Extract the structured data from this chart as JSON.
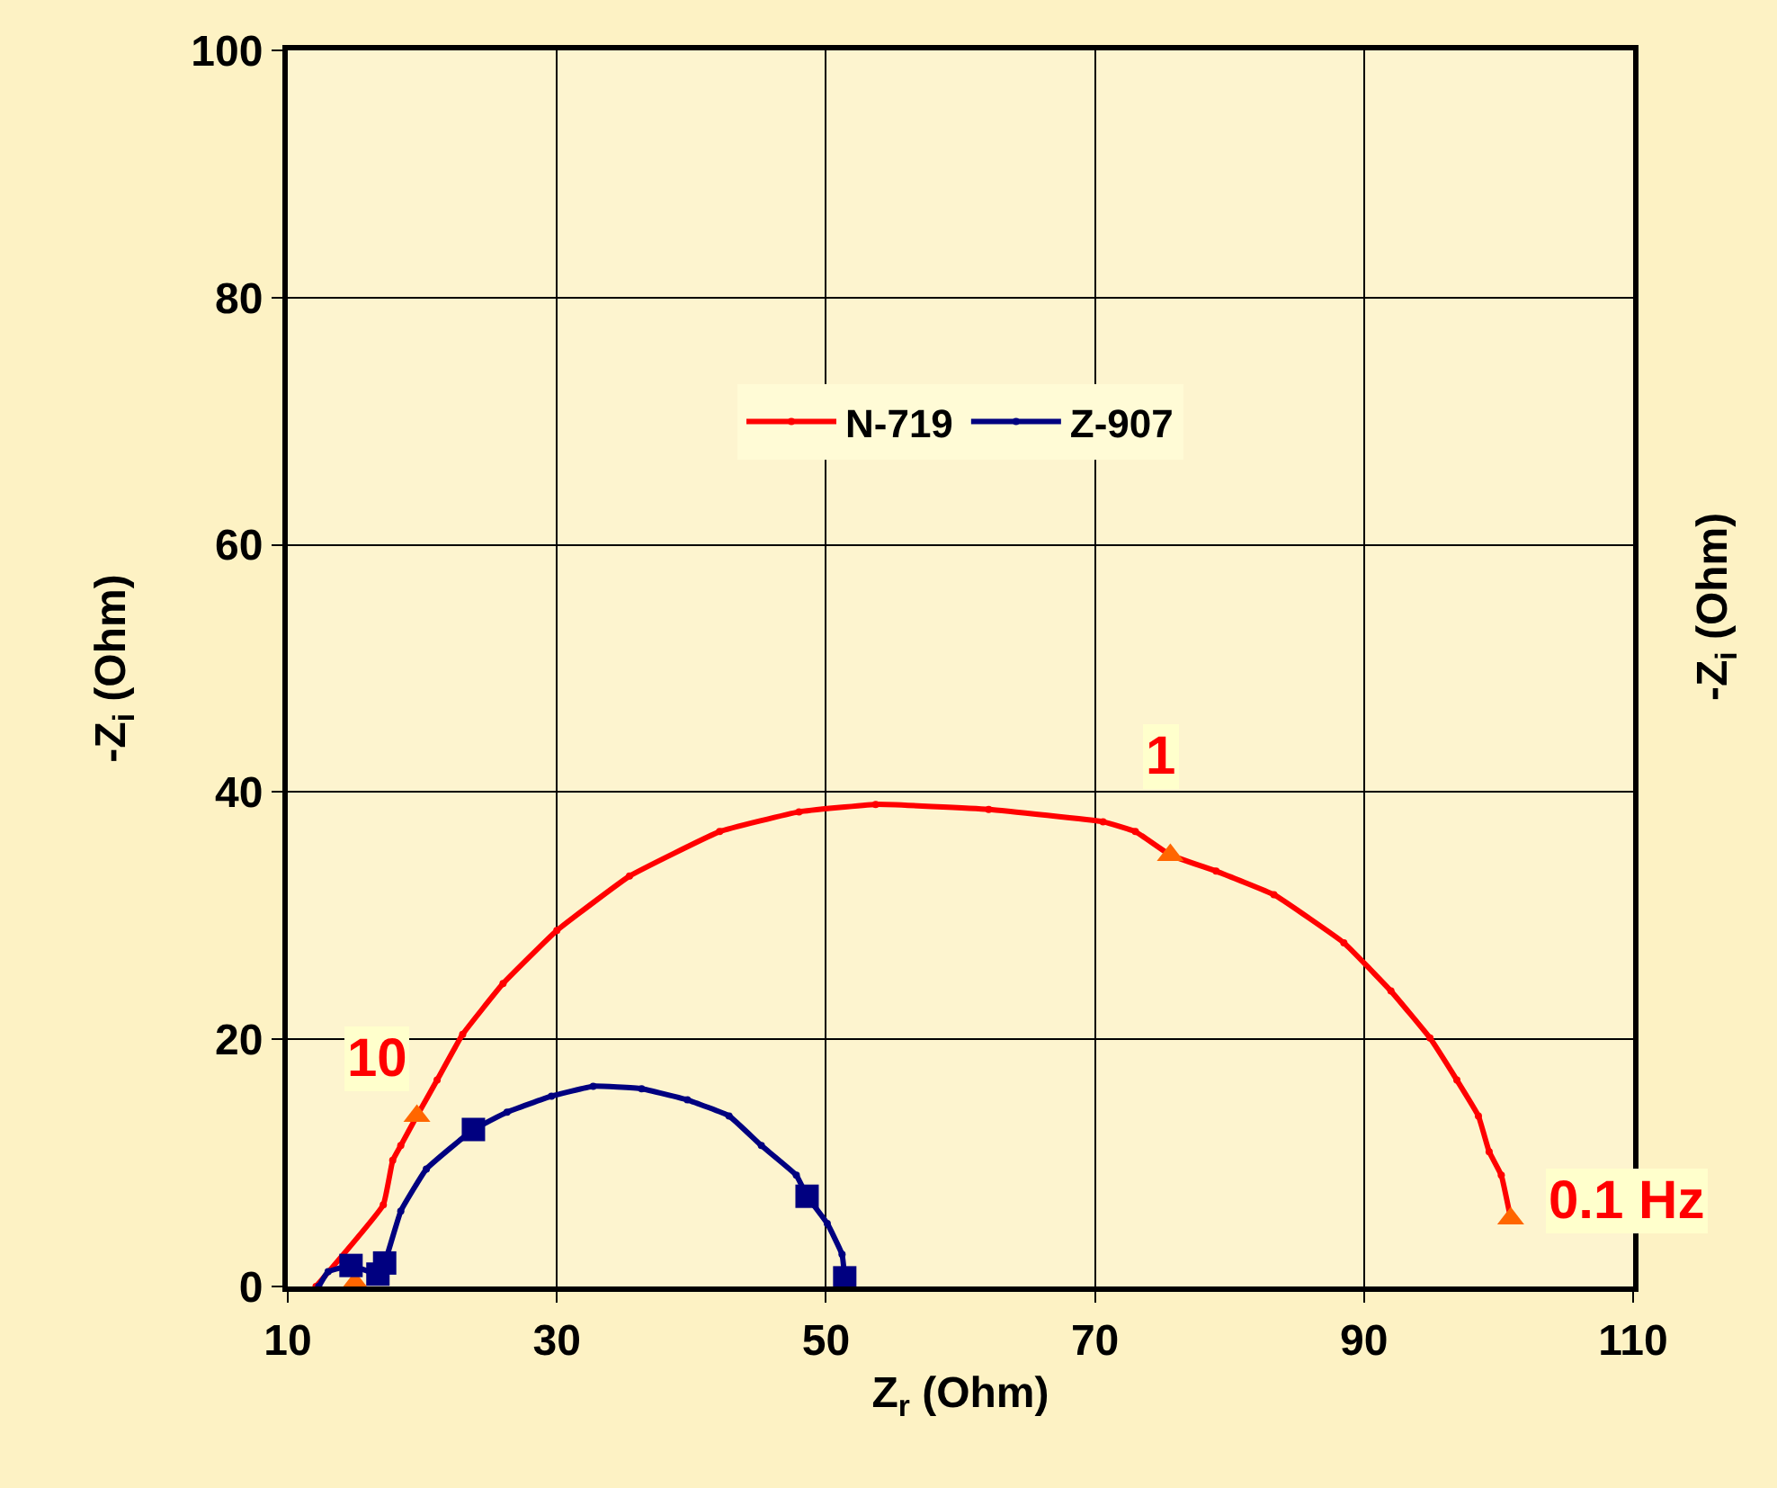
{
  "chart_data": {
    "type": "line",
    "xlabel": "Z$_{r}$ (Ohm)",
    "ylabel": "-Z$_{i}$ (Ohm)",
    "xlim": [
      10,
      110
    ],
    "xticks": [
      10,
      30,
      50,
      70,
      90,
      110
    ],
    "ylim": [
      0,
      100
    ],
    "yticks": [
      0,
      20,
      40,
      60,
      80,
      100
    ],
    "grid": true,
    "legend": "top",
    "line_style": "solid",
    "series": [
      {
        "name": "N-719",
        "color": "#ff0000",
        "marker": "circle",
        "x": [
          12.1,
          17.1,
          17.8,
          18.4,
          19.6,
          21.1,
          23,
          26,
          30,
          35.4,
          42.1,
          48,
          53.7,
          62.1,
          70.6,
          73,
          75.6,
          79,
          83.3,
          88.5,
          92,
          94.9,
          96.9,
          98.5,
          99.3,
          100.2,
          100.9
        ],
        "values": [
          0,
          6.6,
          10.2,
          11.4,
          13.8,
          16.7,
          20.4,
          24.5,
          28.8,
          33.2,
          36.8,
          38.4,
          39,
          38.6,
          37.6,
          36.8,
          34.9,
          33.6,
          31.7,
          27.8,
          23.9,
          20.1,
          16.7,
          13.8,
          10.9,
          9,
          5.5
        ]
      },
      {
        "name": "Z-907",
        "color": "#000080",
        "marker": "circle",
        "x": [
          12.3,
          13,
          14.7,
          16.7,
          17.2,
          18.4,
          20.3,
          23.8,
          26.3,
          29.6,
          32.7,
          36.3,
          39.7,
          42.8,
          45.2,
          47.8,
          48.6,
          50.1,
          51.2,
          51.4
        ],
        "values": [
          0,
          1.2,
          1.7,
          1.0,
          1.9,
          6.1,
          9.5,
          12.7,
          14.1,
          15.4,
          16.2,
          16,
          15.1,
          13.8,
          11.4,
          9,
          7.3,
          5.1,
          2.6,
          0.7
        ]
      },
      {
        "type": "scatter",
        "color": "#ff6600",
        "marker": "triangle",
        "x": [
          15,
          19.6,
          75.6,
          100.9
        ],
        "values": [
          0.3,
          13.8,
          34.9,
          5.5
        ]
      },
      {
        "type": "scatter",
        "color": "#000080",
        "marker": "square",
        "x": [
          14.7,
          16.7,
          17.2,
          23.8,
          48.6,
          51.4
        ],
        "values": [
          1.7,
          1.0,
          1.9,
          12.7,
          7.3,
          0.7
        ]
      }
    ],
    "annotations": [
      {
        "text": "10",
        "x": 19.6,
        "y": 13.8
      },
      {
        "text": "1",
        "x": 75.6,
        "y": 34.9
      },
      {
        "text": "0.1 Hz",
        "x": 100.9,
        "y": 5.5
      },
      "-Z$_{i}$ (Ohm)"
    ]
  }
}
